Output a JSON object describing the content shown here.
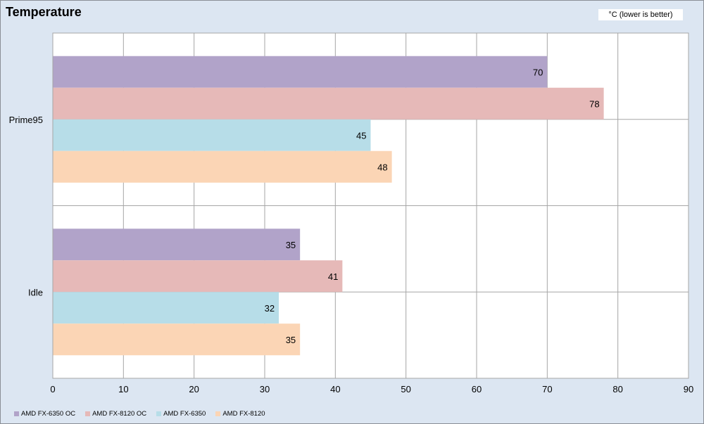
{
  "chart_data": {
    "type": "bar",
    "orientation": "horizontal",
    "title": "Temperature",
    "unit_label": "°C (lower is better)",
    "categories": [
      "Prime95",
      "Idle"
    ],
    "series": [
      {
        "name": "AMD FX-6350 OC",
        "color": "#b1a3c9",
        "values": [
          70,
          35
        ]
      },
      {
        "name": "AMD FX-8120 OC",
        "color": "#e6b9b8",
        "values": [
          78,
          41
        ]
      },
      {
        "name": "AMD FX-6350",
        "color": "#b7dde8",
        "values": [
          45,
          32
        ]
      },
      {
        "name": "AMD FX-8120",
        "color": "#fbd5b5",
        "values": [
          48,
          35
        ]
      }
    ],
    "xlim": [
      0,
      90
    ],
    "xticks": [
      "0",
      "10",
      "20",
      "30",
      "40",
      "50",
      "60",
      "70",
      "80",
      "90"
    ],
    "grid": true,
    "legend_position": "bottom-left"
  }
}
